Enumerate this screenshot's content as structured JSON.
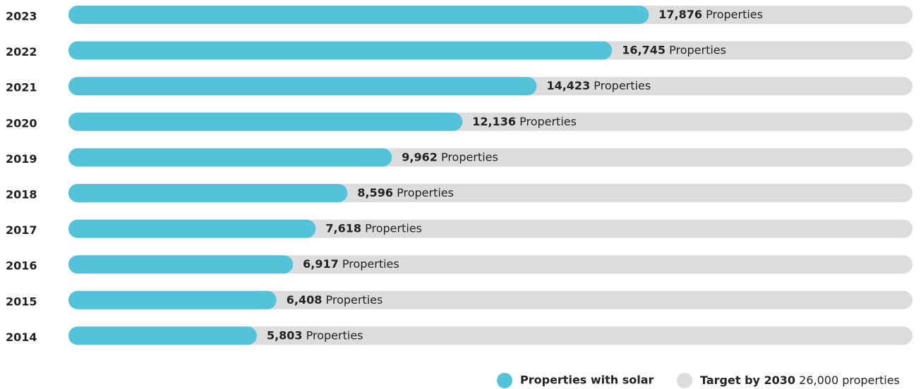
{
  "chart_data": {
    "type": "bar",
    "orientation": "horizontal",
    "categories": [
      "2023",
      "2022",
      "2021",
      "2020",
      "2019",
      "2018",
      "2017",
      "2016",
      "2015",
      "2014"
    ],
    "series": [
      {
        "name": "Properties with solar",
        "color": "#52c3d8",
        "values": [
          17876,
          16745,
          14423,
          12136,
          9962,
          8596,
          7618,
          6917,
          6408,
          5803
        ],
        "value_labels": [
          "17,876",
          "16,745",
          "14,423",
          "12,136",
          "9,962",
          "8,596",
          "7,618",
          "6,917",
          "6,408",
          "5,803"
        ]
      }
    ],
    "value_label_suffix": "Properties",
    "target": {
      "name": "Target by 2030",
      "value": 26000,
      "label": "26,000 properties",
      "color": "#dcdcdc"
    },
    "xlim": [
      0,
      26000
    ]
  }
}
